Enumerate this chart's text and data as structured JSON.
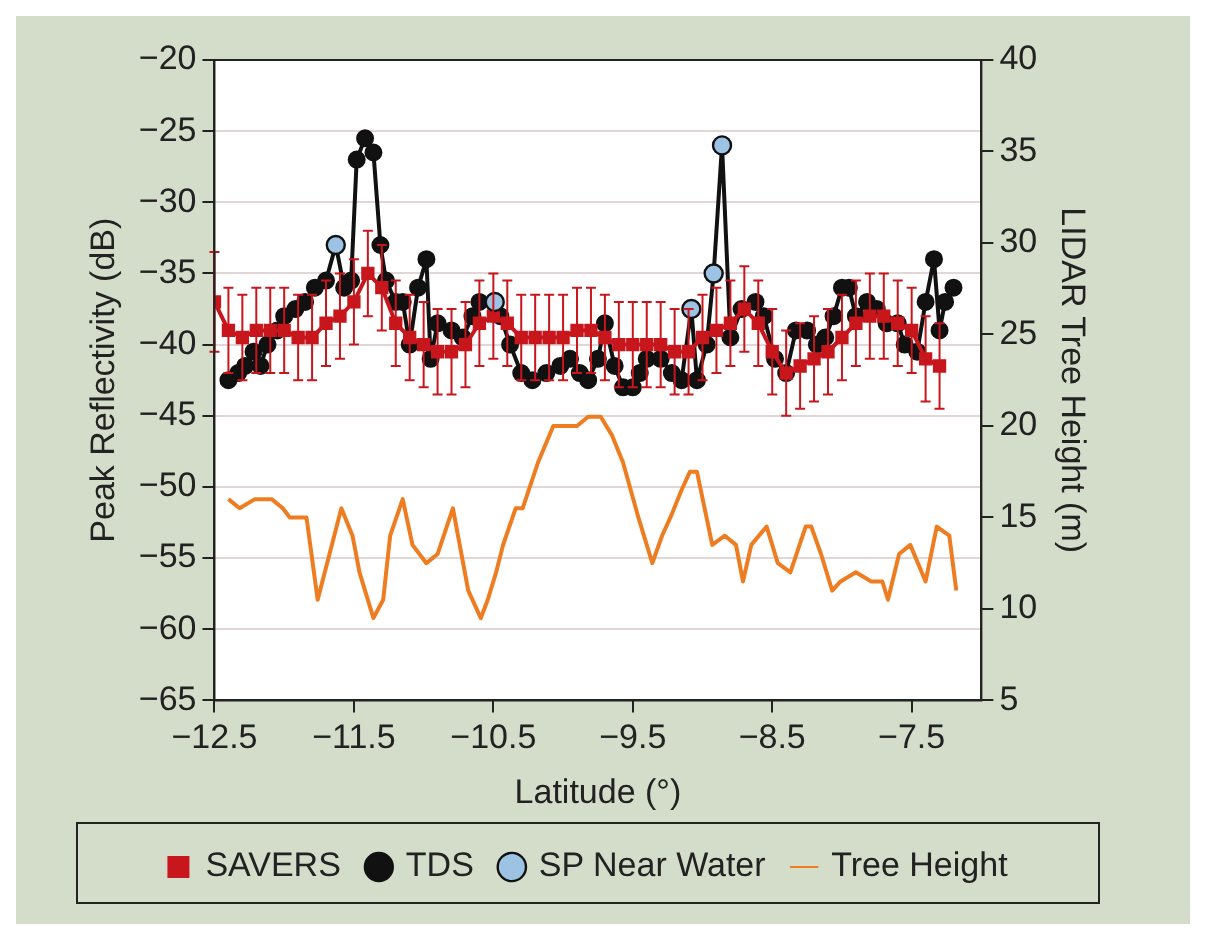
{
  "chart_data": {
    "type": "line",
    "xlabel": "Latitude (°)",
    "ylabel": "Peak Reflectivity (dB)",
    "y2label": "LIDAR Tree Height (m)",
    "xlim": [
      -12.5,
      -7.0
    ],
    "xticks": [
      -12.5,
      -11.5,
      -10.5,
      -9.5,
      -8.5,
      -7.5
    ],
    "ylim": [
      -65,
      -20
    ],
    "yticks": [
      -65,
      -60,
      -55,
      -50,
      -45,
      -40,
      -35,
      -30,
      -25,
      -20
    ],
    "y2lim": [
      5,
      40
    ],
    "y2ticks": [
      5,
      10,
      15,
      20,
      25,
      30,
      35,
      40
    ],
    "grid": "y",
    "legend": "bottom",
    "series": [
      {
        "name": "SAVERS",
        "type": "line",
        "color": "#c8161d",
        "marker": "square",
        "x": [
          -12.5,
          -12.4,
          -12.3,
          -12.2,
          -12.1,
          -12.0,
          -11.9,
          -11.8,
          -11.7,
          -11.6,
          -11.5,
          -11.4,
          -11.3,
          -11.2,
          -11.1,
          -11.0,
          -10.9,
          -10.8,
          -10.7,
          -10.6,
          -10.5,
          -10.4,
          -10.3,
          -10.2,
          -10.1,
          -10.0,
          -9.9,
          -9.8,
          -9.7,
          -9.6,
          -9.5,
          -9.4,
          -9.3,
          -9.2,
          -9.1,
          -9.0,
          -8.9,
          -8.8,
          -8.7,
          -8.6,
          -8.5,
          -8.4,
          -8.3,
          -8.2,
          -8.1,
          -8.0,
          -7.9,
          -7.8,
          -7.7,
          -7.6,
          -7.5,
          -7.4,
          -7.3
        ],
        "values": [
          -37,
          -39,
          -39.5,
          -39,
          -39,
          -39,
          -39.5,
          -39.5,
          -38.5,
          -38,
          -37,
          -35,
          -36,
          -38.5,
          -39.5,
          -40,
          -40.5,
          -40.5,
          -40,
          -38.5,
          -38,
          -38.5,
          -39.5,
          -39.5,
          -39.5,
          -39.5,
          -39,
          -39,
          -39.5,
          -40,
          -40,
          -40,
          -40,
          -40.5,
          -40.5,
          -39.5,
          -39,
          -38.5,
          -37.5,
          -38.5,
          -40.5,
          -42,
          -41.5,
          -41,
          -40.5,
          -39.5,
          -38.5,
          -38,
          -38,
          -38.5,
          -39,
          -41,
          -41.5
        ],
        "errors": [
          3.5,
          3,
          3,
          3,
          3,
          3,
          3,
          3,
          3,
          3,
          3,
          3,
          3,
          3,
          3,
          3,
          3,
          3,
          3,
          3,
          3,
          3,
          3,
          3,
          3,
          3,
          3,
          3,
          3,
          3,
          3,
          3,
          3,
          3,
          3,
          3,
          3,
          3,
          3,
          3,
          3,
          3,
          3,
          3,
          3,
          3,
          3,
          3,
          3,
          3,
          3,
          3,
          3
        ]
      },
      {
        "name": "TDS",
        "type": "line",
        "color": "#111111",
        "marker": "circle",
        "x": [
          -12.4,
          -12.33,
          -12.28,
          -12.22,
          -12.17,
          -12.12,
          -12.05,
          -12.0,
          -11.92,
          -11.85,
          -11.78,
          -11.7,
          -11.63,
          -11.57,
          -11.52,
          -11.48,
          -11.42,
          -11.36,
          -11.31,
          -11.27,
          -11.2,
          -11.15,
          -11.1,
          -11.04,
          -10.98,
          -10.95,
          -10.9,
          -10.8,
          -10.72,
          -10.65,
          -10.6,
          -10.49,
          -10.45,
          -10.38,
          -10.3,
          -10.22,
          -10.12,
          -10.02,
          -9.95,
          -9.88,
          -9.82,
          -9.75,
          -9.7,
          -9.63,
          -9.57,
          -9.5,
          -9.45,
          -9.4,
          -9.3,
          -9.22,
          -9.15,
          -9.08,
          -9.04,
          -8.97,
          -8.92,
          -8.86,
          -8.8,
          -8.72,
          -8.62,
          -8.56,
          -8.48,
          -8.4,
          -8.33,
          -8.25,
          -8.18,
          -8.12,
          -8.06,
          -8.0,
          -7.95,
          -7.9,
          -7.82,
          -7.75,
          -7.68,
          -7.6,
          -7.55,
          -7.46,
          -7.4,
          -7.34,
          -7.3,
          -7.26,
          -7.2
        ],
        "values": [
          -42.5,
          -42,
          -41.5,
          -40.5,
          -41.5,
          -40,
          -39,
          -38,
          -37.5,
          -37,
          -36,
          -35.5,
          -33,
          -36,
          -35.5,
          -27,
          -25.5,
          -26.5,
          -33,
          -35.5,
          -37,
          -37,
          -40,
          -36,
          -34,
          -41,
          -38.5,
          -39,
          -39.5,
          -38,
          -37,
          -37,
          -38,
          -40,
          -42,
          -42.5,
          -42,
          -41.5,
          -41,
          -42,
          -42.5,
          -41,
          -38.5,
          -41.5,
          -43,
          -43,
          -42,
          -41,
          -41,
          -42,
          -42.5,
          -37.5,
          -42.5,
          -40,
          -35,
          -26,
          -39.5,
          -37.5,
          -37,
          -38,
          -41,
          -42,
          -39,
          -39,
          -40,
          -39.5,
          -38,
          -36,
          -36,
          -38,
          -37,
          -37.5,
          -38.5,
          -38.5,
          -40,
          -40.5,
          -37,
          -34,
          -39,
          -37,
          -36
        ]
      },
      {
        "name": "SP Near Water",
        "type": "scatter",
        "color": "#9cc3e4",
        "marker": "circle",
        "x": [
          -11.63,
          -10.49,
          -9.08,
          -8.92,
          -8.86
        ],
        "values": [
          -33,
          -37,
          -37.5,
          -35,
          -26
        ]
      },
      {
        "name": "Tree Height",
        "type": "line",
        "color": "#ee7d22",
        "marker": "none",
        "axis": "y2",
        "x": [
          -12.4,
          -12.32,
          -12.21,
          -12.09,
          -12.01,
          -11.96,
          -11.84,
          -11.76,
          -11.59,
          -11.51,
          -11.46,
          -11.36,
          -11.29,
          -11.24,
          -11.15,
          -11.08,
          -10.98,
          -10.9,
          -10.79,
          -10.68,
          -10.59,
          -10.54,
          -10.48,
          -10.43,
          -10.34,
          -10.29,
          -10.18,
          -10.07,
          -9.98,
          -9.9,
          -9.82,
          -9.73,
          -9.65,
          -9.57,
          -9.46,
          -9.36,
          -9.29,
          -9.23,
          -9.15,
          -9.09,
          -9.04,
          -8.93,
          -8.84,
          -8.76,
          -8.71,
          -8.65,
          -8.54,
          -8.46,
          -8.37,
          -8.26,
          -8.22,
          -8.15,
          -8.07,
          -8.01,
          -7.9,
          -7.79,
          -7.71,
          -7.67,
          -7.59,
          -7.51,
          -7.4,
          -7.32,
          -7.23,
          -7.18
        ],
        "values": [
          16,
          15.5,
          16,
          16,
          15.5,
          15,
          15,
          10.5,
          15.5,
          14,
          12,
          9.5,
          10.5,
          14,
          16,
          13.5,
          12.5,
          13,
          15.5,
          11,
          9.5,
          10.5,
          12,
          13.5,
          15.5,
          15.5,
          18,
          20,
          20,
          20,
          20.5,
          20.5,
          19.5,
          18,
          15,
          12.5,
          14,
          15,
          16.5,
          17.5,
          17.5,
          13.5,
          14,
          13.5,
          11.5,
          13.5,
          14.5,
          12.5,
          12,
          14.5,
          14.5,
          13,
          11,
          11.5,
          12,
          11.5,
          11.5,
          10.5,
          13,
          13.5,
          11.5,
          14.5,
          14,
          11
        ]
      }
    ]
  }
}
